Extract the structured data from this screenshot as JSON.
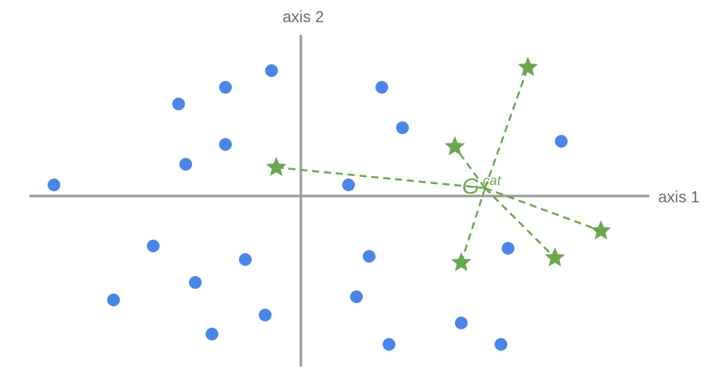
{
  "labels": {
    "x_axis": "axis 1",
    "y_axis": "axis 2",
    "centroid_main": "G",
    "centroid_sup": "cat"
  },
  "colors": {
    "axis": "#999999",
    "axis_label": "#6b6b6b",
    "dot": "#4a86e8",
    "star": "#6aa84f",
    "connector": "#6aa84f",
    "centroid_label": "#6aa84f"
  },
  "chart_data": {
    "type": "scatter",
    "series": [
      {
        "points": [
          [
            -311,
            14
          ],
          [
            -154,
            116
          ],
          [
            -95,
            137
          ],
          [
            -37,
            158
          ],
          [
            -145,
            40
          ],
          [
            -95,
            65
          ],
          [
            102,
            137
          ],
          [
            128,
            86
          ],
          [
            328,
            69
          ],
          [
            60,
            14
          ],
          [
            -186,
            -63
          ],
          [
            -70,
            -80
          ],
          [
            -133,
            -109
          ],
          [
            -236,
            -131
          ],
          [
            -45,
            -150
          ],
          [
            -112,
            -174
          ],
          [
            86,
            -76
          ],
          [
            70,
            -127
          ],
          [
            202,
            -160
          ],
          [
            252,
            -187
          ],
          [
            261,
            -66
          ],
          [
            111,
            -187
          ]
        ]
      },
      {
        "points": [
          [
            -31,
            36
          ],
          [
            194,
            62
          ],
          [
            286,
            162
          ],
          [
            378,
            -44
          ],
          [
            320,
            -78
          ],
          [
            202,
            -84
          ]
        ]
      }
    ],
    "centroid": [
      232,
      10
    ]
  }
}
